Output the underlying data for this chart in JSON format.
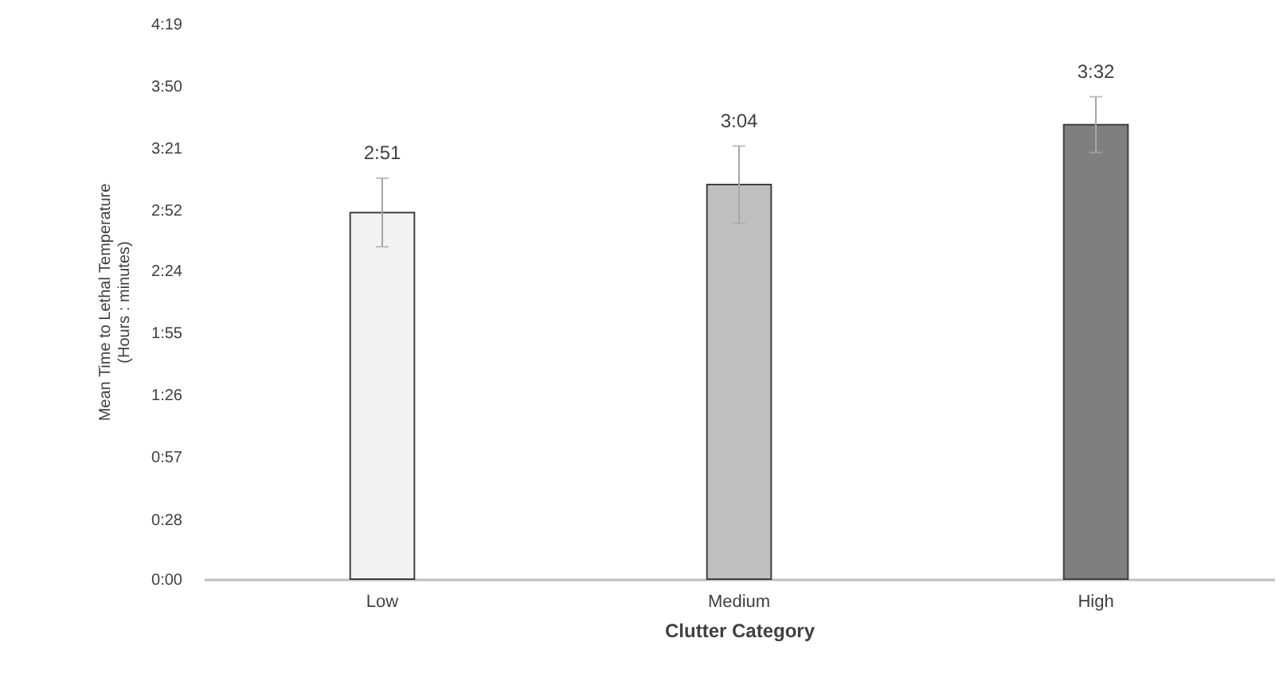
{
  "chart_data": {
    "type": "bar",
    "xlabel": "Clutter Category",
    "ylabel": "Mean Time to Lethal Temperature\n(Hours : minutes)",
    "categories": [
      "Low",
      "Medium",
      "High"
    ],
    "values": [
      171,
      184,
      212
    ],
    "colors": [
      "#f2f2f2",
      "#bfbfbf",
      "#7f7f7f"
    ],
    "errors": [
      16,
      18,
      13
    ],
    "value_labels": [
      "2:51",
      "3:04",
      "3:32"
    ],
    "ylim": [
      0,
      259
    ],
    "yticks": [
      {
        "value": 0,
        "label": "0:00"
      },
      {
        "value": 28,
        "label": "0:28"
      },
      {
        "value": 57,
        "label": "0:57"
      },
      {
        "value": 86,
        "label": "1:26"
      },
      {
        "value": 115,
        "label": "1:55"
      },
      {
        "value": 144,
        "label": "2:24"
      },
      {
        "value": 172,
        "label": "2:52"
      },
      {
        "value": 201,
        "label": "3:21"
      },
      {
        "value": 230,
        "label": "3:50"
      },
      {
        "value": 259,
        "label": "4:19"
      }
    ],
    "grid": false
  }
}
